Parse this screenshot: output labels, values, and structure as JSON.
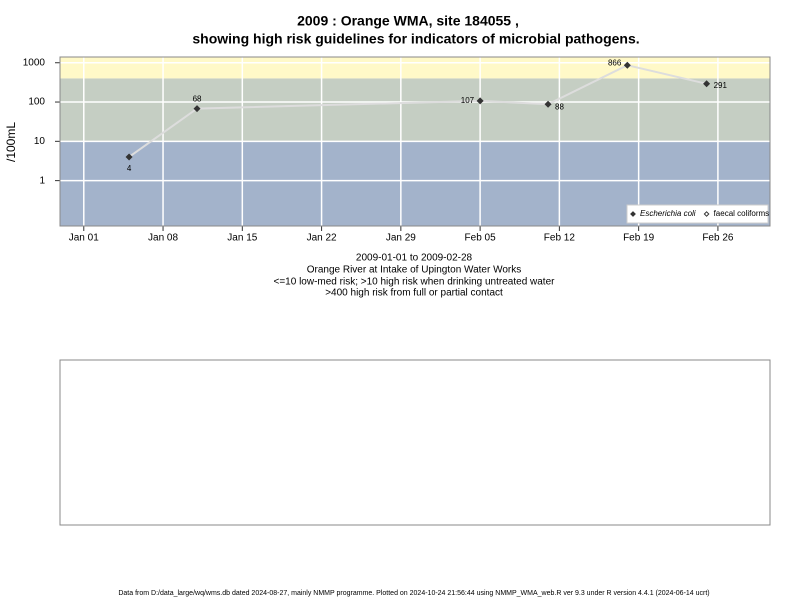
{
  "chart_data": {
    "type": "line",
    "title": "2009 : Orange WMA, site 184055 ,",
    "title2": "showing high risk guidelines for indicators of microbial pathogens.",
    "ylabel": "/100mL",
    "notes": [
      "2009-01-01 to 2009-02-28",
      "Orange River at Intake of Upington Water Works",
      "<=10 low-med risk; >10 high risk when drinking untreated water",
      ">400 high risk from full or partial contact"
    ],
    "footer": "Data from D:/data_large/wq/wms.db dated 2024-08-27, mainly NMMP programme. Plotted on 2024-10-24 21:56:44 using NMMP_WMA_web.R ver 9.3 under R version 4.4.1 (2024-06-14 ucrt)",
    "x": [
      5,
      11,
      36,
      42,
      49,
      56
    ],
    "series": [
      {
        "name": "Escherichia coli",
        "color": "#333333",
        "values": [
          4,
          68,
          107,
          88,
          866,
          291
        ]
      },
      {
        "name": "faecal coliforms",
        "color": "#333333",
        "values": [
          null,
          null,
          null,
          null,
          null,
          null
        ]
      }
    ],
    "line_color": "#dddddd",
    "xlim": [
      -1.1,
      61.6
    ],
    "xticks": [
      {
        "value": 1,
        "label": "Jan 01"
      },
      {
        "value": 8,
        "label": "Jan 08"
      },
      {
        "value": 15,
        "label": "Jan 15"
      },
      {
        "value": 22,
        "label": "Jan 22"
      },
      {
        "value": 29,
        "label": "Jan 29"
      },
      {
        "value": 36,
        "label": "Feb 05"
      },
      {
        "value": 43,
        "label": "Feb 12"
      },
      {
        "value": 50,
        "label": "Feb 19"
      },
      {
        "value": 57,
        "label": "Feb 26"
      }
    ],
    "ylim": [
      0.07,
      1400
    ],
    "yticks": [
      1,
      10,
      100,
      1000
    ],
    "log_y": true,
    "grid": true,
    "legend": "bottom-right",
    "bands": [
      {
        "from": 0.07,
        "to": 10,
        "color": "#a3b3cb"
      },
      {
        "from": 10,
        "to": 400,
        "color": "#c5cec3"
      },
      {
        "from": 400,
        "to": 1400,
        "color": "#fff9c8"
      }
    ]
  }
}
